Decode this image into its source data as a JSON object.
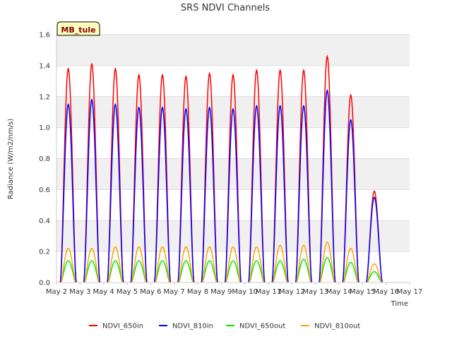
{
  "chart_data": {
    "type": "line",
    "title": "SRS NDVI Channels",
    "xlabel": "Time",
    "ylabel": "Radiance (W/m2/nm/s)",
    "site_label": "MB_tule",
    "x_range": [
      "May 2",
      "May 17"
    ],
    "ylim": [
      0.0,
      1.6
    ],
    "x_ticks": [
      "May 2",
      "May 3",
      "May 4",
      "May 5",
      "May 6",
      "May 7",
      "May 8",
      "May 9",
      "May 10",
      "May 11",
      "May 12",
      "May 13",
      "May 14",
      "May 15",
      "May 16",
      "May 17"
    ],
    "y_ticks": [
      "0.0",
      "0.2",
      "0.4",
      "0.6",
      "0.8",
      "1.0",
      "1.2",
      "1.4",
      "1.6"
    ],
    "grid": true,
    "background_bands": true,
    "legend_position": "bottom",
    "daily_peaks": {
      "days": [
        "May 2",
        "May 3",
        "May 4",
        "May 5",
        "May 6",
        "May 7",
        "May 8",
        "May 9",
        "May 10",
        "May 11",
        "May 12",
        "May 13",
        "May 14",
        "May 15"
      ],
      "note_midday_fraction": 0.5
    },
    "series": [
      {
        "name": "NDVI_650in",
        "color": "#ff0000",
        "peaks": [
          1.38,
          1.41,
          1.38,
          1.34,
          1.34,
          1.33,
          1.35,
          1.34,
          1.37,
          1.37,
          1.37,
          1.46,
          1.21,
          0.59
        ]
      },
      {
        "name": "NDVI_810in",
        "color": "#0000ff",
        "peaks": [
          1.15,
          1.18,
          1.15,
          1.13,
          1.13,
          1.12,
          1.13,
          1.12,
          1.14,
          1.14,
          1.14,
          1.24,
          1.05,
          0.55
        ]
      },
      {
        "name": "NDVI_650out",
        "color": "#00ee00",
        "peaks": [
          0.14,
          0.14,
          0.14,
          0.14,
          0.14,
          0.14,
          0.14,
          0.14,
          0.14,
          0.14,
          0.15,
          0.16,
          0.13,
          0.07
        ]
      },
      {
        "name": "NDVI_810out",
        "color": "#ffa500",
        "peaks": [
          0.22,
          0.22,
          0.23,
          0.23,
          0.23,
          0.23,
          0.23,
          0.23,
          0.23,
          0.24,
          0.24,
          0.26,
          0.22,
          0.12
        ]
      }
    ]
  }
}
